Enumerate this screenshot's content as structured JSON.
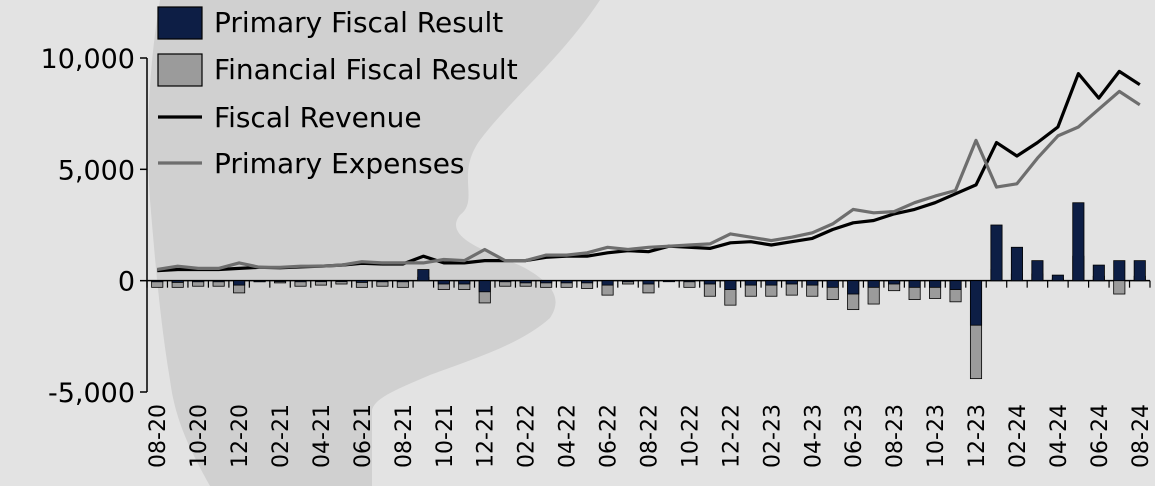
{
  "chart_data": {
    "type": "bar+line",
    "title": "",
    "xlabel": "",
    "ylabel": "",
    "ylim": [
      -5000,
      10000
    ],
    "yticks": [
      -5000,
      0,
      5000,
      10000
    ],
    "ytick_labels": [
      "-5,000",
      "0",
      "5,000",
      "10,000"
    ],
    "x": [
      "08-20",
      "09-20",
      "10-20",
      "11-20",
      "12-20",
      "01-21",
      "02-21",
      "03-21",
      "04-21",
      "05-21",
      "06-21",
      "07-21",
      "08-21",
      "09-21",
      "10-21",
      "11-21",
      "12-21",
      "01-22",
      "02-22",
      "03-22",
      "04-22",
      "05-22",
      "06-22",
      "07-22",
      "08-22",
      "09-22",
      "10-22",
      "11-22",
      "12-22",
      "01-23",
      "02-23",
      "03-23",
      "04-23",
      "05-23",
      "06-23",
      "07-23",
      "08-23",
      "09-23",
      "10-23",
      "11-23",
      "12-23",
      "01-24",
      "02-24",
      "03-24",
      "04-24",
      "05-24",
      "06-24",
      "07-24",
      "08-24"
    ],
    "x_tick_labels": [
      "08-20",
      "10-20",
      "12-20",
      "02-21",
      "04-21",
      "06-21",
      "08-21",
      "10-21",
      "12-21",
      "02-22",
      "04-22",
      "06-22",
      "08-22",
      "10-22",
      "12-22",
      "02-23",
      "04-23",
      "06-23",
      "08-23",
      "10-23",
      "12-23",
      "02-24",
      "04-24",
      "06-24",
      "08-24"
    ],
    "grid": false,
    "legend": {
      "placement": "top-left"
    },
    "series": [
      {
        "name": "Primary Fiscal Result",
        "kind": "bar",
        "color": "#0d1e45",
        "values": [
          -50,
          -80,
          -50,
          -50,
          -200,
          0,
          -30,
          -50,
          -30,
          -20,
          -80,
          -50,
          -50,
          500,
          -150,
          -150,
          -500,
          -50,
          -100,
          -100,
          -100,
          -100,
          -200,
          -50,
          -150,
          0,
          -50,
          -150,
          -400,
          -200,
          -200,
          -150,
          -200,
          -300,
          -600,
          -300,
          -150,
          -300,
          -300,
          -400,
          -2000,
          2500,
          1500,
          900,
          250,
          3500,
          700,
          900,
          900
        ]
      },
      {
        "name": "Financial Fiscal Result",
        "kind": "bar",
        "color": "#9b9b9b",
        "values": [
          -300,
          -300,
          -250,
          -250,
          -550,
          -50,
          -100,
          -250,
          -200,
          -150,
          -300,
          -250,
          -300,
          150,
          -400,
          -400,
          -1000,
          -250,
          -250,
          -300,
          -300,
          -350,
          -650,
          -150,
          -550,
          -20,
          -300,
          -700,
          -1100,
          -700,
          -700,
          -650,
          -700,
          -850,
          -1300,
          -1050,
          -450,
          -850,
          -800,
          -950,
          -4400,
          500,
          300,
          300,
          80,
          1100,
          200,
          -600,
          200
        ]
      },
      {
        "name": "Fiscal Revenue",
        "kind": "line",
        "color": "#000000",
        "values": [
          450,
          500,
          500,
          500,
          550,
          600,
          580,
          620,
          650,
          700,
          780,
          750,
          750,
          1100,
          800,
          800,
          900,
          900,
          900,
          1050,
          1100,
          1100,
          1250,
          1350,
          1300,
          1550,
          1500,
          1450,
          1700,
          1750,
          1600,
          1750,
          1900,
          2300,
          2600,
          2700,
          3000,
          3200,
          3500,
          3900,
          4300,
          6200,
          5600,
          6200,
          6900,
          9300,
          8200,
          9400,
          8800
        ]
      },
      {
        "name": "Primary Expenses",
        "kind": "line",
        "color": "#6e6e6e",
        "values": [
          500,
          650,
          550,
          550,
          800,
          600,
          600,
          650,
          650,
          700,
          850,
          800,
          800,
          800,
          950,
          900,
          1400,
          900,
          900,
          1150,
          1150,
          1250,
          1500,
          1400,
          1500,
          1550,
          1600,
          1650,
          2100,
          1950,
          1800,
          1950,
          2150,
          2550,
          3200,
          3050,
          3100,
          3500,
          3800,
          4050,
          6300,
          4200,
          4350,
          5500,
          6500,
          6900,
          7700,
          8500,
          7900
        ]
      }
    ]
  }
}
